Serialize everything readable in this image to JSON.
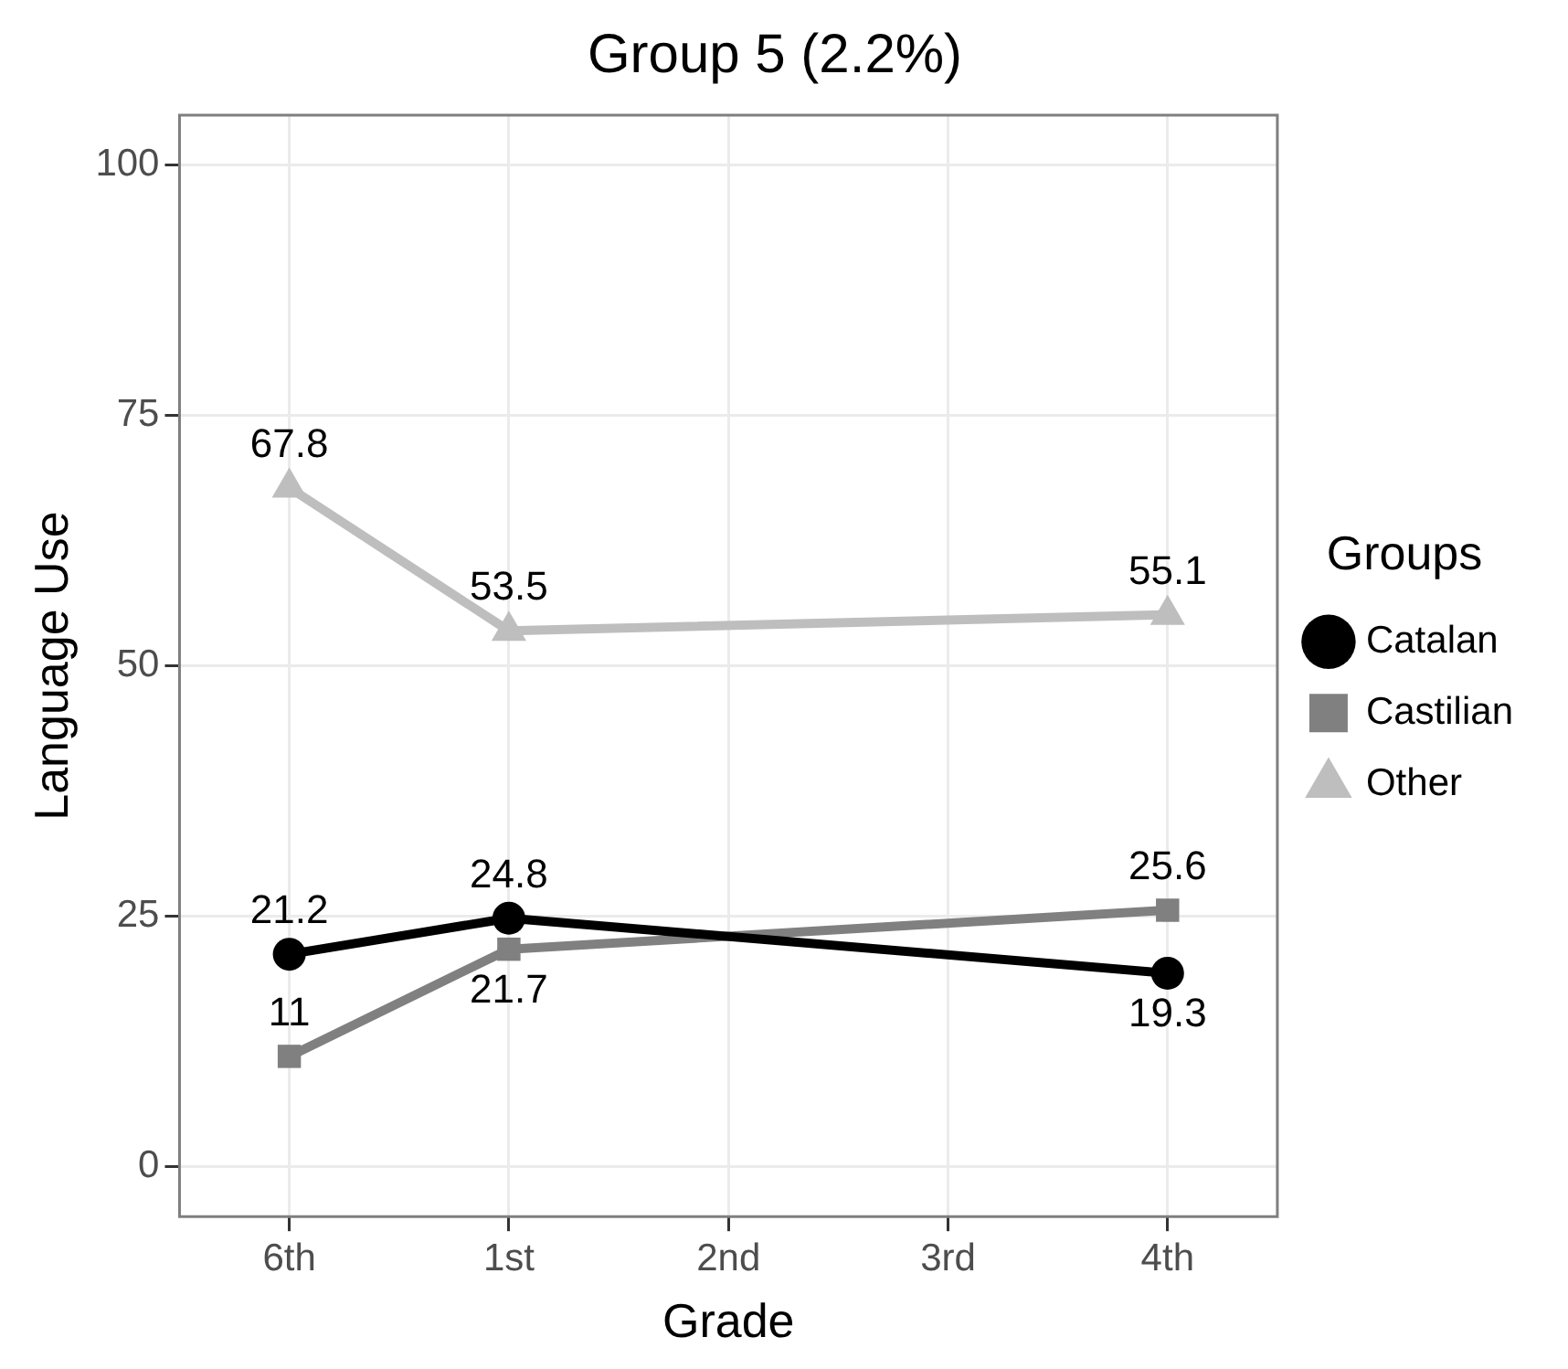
{
  "chart_data": {
    "type": "line",
    "title": "Group 5 (2.2%)",
    "xlabel": "Grade",
    "ylabel": "Language Use",
    "legend_title": "Groups",
    "categories": [
      "6th",
      "1st",
      "2nd",
      "3rd",
      "4th"
    ],
    "series": [
      {
        "name": "Catalan",
        "color": "#000000",
        "marker": "circle",
        "values": [
          21.2,
          24.8,
          null,
          null,
          19.3
        ]
      },
      {
        "name": "Castilian",
        "color": "#808080",
        "marker": "square",
        "values": [
          11,
          21.7,
          null,
          null,
          25.6
        ]
      },
      {
        "name": "Other",
        "color": "#bebebe",
        "marker": "triangle",
        "values": [
          67.8,
          53.5,
          null,
          null,
          55.1
        ]
      }
    ],
    "ylim": [
      -5,
      105
    ],
    "yticks": [
      0,
      25,
      50,
      75,
      100
    ],
    "grid": true,
    "legend": "right",
    "data_labels": true,
    "line_style": "solid"
  }
}
